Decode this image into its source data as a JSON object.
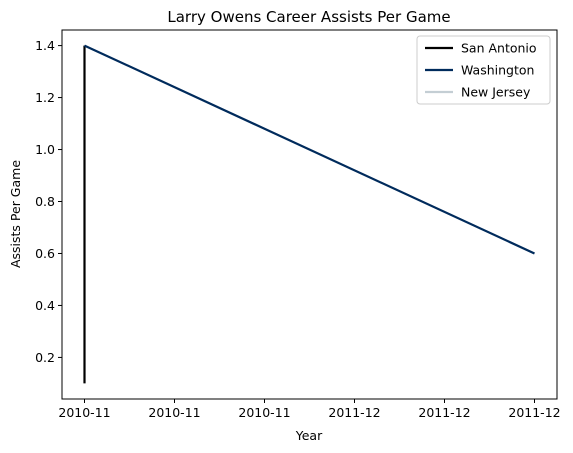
{
  "chart_data": {
    "type": "line",
    "title": "Larry Owens Career Assists Per Game",
    "xlabel": "Year",
    "ylabel": "Assists Per Game",
    "x_tick_labels": [
      "2010-11",
      "2010-11",
      "2010-11",
      "2011-12",
      "2011-12",
      "2011-12"
    ],
    "y_ticks": [
      0.2,
      0.4,
      0.6,
      0.8,
      1.0,
      1.2,
      1.4
    ],
    "y_tick_labels": [
      "0.2",
      "0.4",
      "0.6",
      "0.8",
      "1.0",
      "1.2",
      "1.4"
    ],
    "ylim": [
      0.04,
      1.46
    ],
    "xlim": [
      -0.25,
      5.25
    ],
    "grid": false,
    "legend_position": "top-right",
    "series": [
      {
        "name": "San Antonio",
        "color": "#000000",
        "x": [
          0,
          0
        ],
        "y": [
          0.1,
          1.4
        ]
      },
      {
        "name": "Washington",
        "color": "#002b5c",
        "x": [
          0,
          5
        ],
        "y": [
          1.4,
          0.6
        ]
      },
      {
        "name": "New Jersey",
        "color": "#c4ced4",
        "x": [
          0,
          0
        ],
        "y": [
          1.4,
          1.4
        ]
      }
    ]
  }
}
